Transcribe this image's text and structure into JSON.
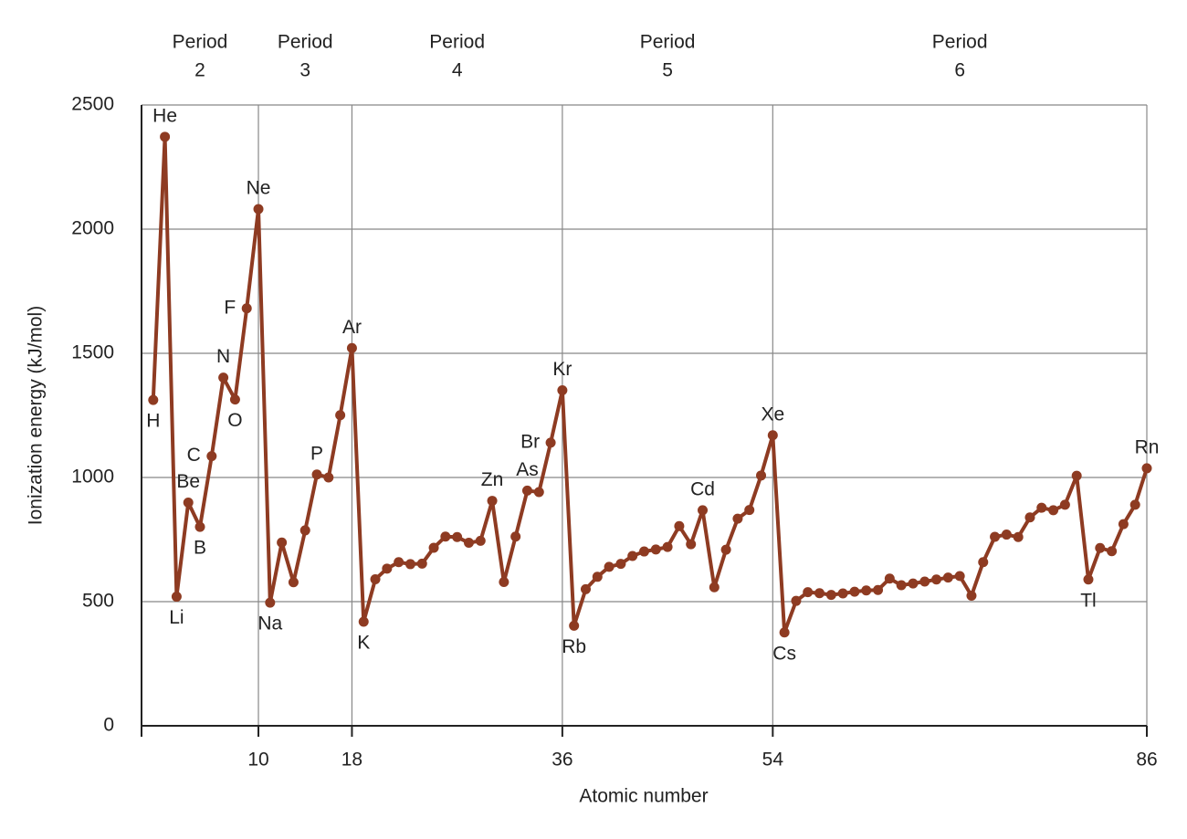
{
  "chart_data": {
    "type": "line",
    "x_label": "Atomic number",
    "y_label": "Ionization energy (kJ/mol)",
    "period_labels": [
      [
        "Period",
        "2"
      ],
      [
        "Period",
        "3"
      ],
      [
        "Period",
        "4"
      ],
      [
        "Period",
        "5"
      ],
      [
        "Period",
        "6"
      ]
    ],
    "xlim": [
      0,
      86
    ],
    "xticks": [
      10,
      18,
      36,
      54,
      86
    ],
    "ylim": [
      0,
      2500
    ],
    "yticks": [
      0,
      500,
      1000,
      1500,
      2000,
      2500
    ],
    "grid": true,
    "x": [
      1,
      2,
      3,
      4,
      5,
      6,
      7,
      8,
      9,
      10,
      11,
      12,
      13,
      14,
      15,
      16,
      17,
      18,
      19,
      20,
      21,
      22,
      23,
      24,
      25,
      26,
      27,
      28,
      29,
      30,
      31,
      32,
      33,
      34,
      35,
      36,
      37,
      38,
      39,
      40,
      41,
      42,
      43,
      44,
      45,
      46,
      47,
      48,
      49,
      50,
      51,
      52,
      53,
      54,
      55,
      56,
      57,
      58,
      59,
      60,
      61,
      62,
      63,
      64,
      65,
      66,
      67,
      68,
      69,
      70,
      71,
      72,
      73,
      74,
      75,
      76,
      77,
      78,
      79,
      80,
      81,
      82,
      83,
      84,
      85,
      86
    ],
    "series": [
      {
        "name": "Ionization energy",
        "color": "#8e3b22",
        "values": [
          1312,
          2372,
          520,
          899,
          801,
          1086,
          1402,
          1314,
          1681,
          2081,
          496,
          738,
          578,
          787,
          1012,
          1000,
          1251,
          1521,
          419,
          590,
          633,
          659,
          651,
          653,
          717,
          762,
          760,
          737,
          745,
          906,
          579,
          762,
          947,
          941,
          1140,
          1351,
          403,
          550,
          600,
          640,
          652,
          684,
          702,
          710,
          720,
          804,
          731,
          868,
          558,
          709,
          834,
          869,
          1008,
          1170,
          376,
          503,
          538,
          534,
          527,
          533,
          540,
          545,
          547,
          593,
          566,
          573,
          581,
          589,
          597,
          603,
          524,
          659,
          761,
          770,
          760,
          839,
          878,
          868,
          890,
          1007,
          589,
          716,
          703,
          812,
          890,
          1037
        ],
        "point_labels": [
          "H",
          "He",
          "Li",
          "Be",
          "B",
          "C",
          "N",
          "O",
          "F",
          "Ne",
          "Na",
          null,
          null,
          null,
          "P",
          null,
          null,
          "Ar",
          "K",
          null,
          null,
          null,
          null,
          null,
          null,
          null,
          null,
          null,
          null,
          "Zn",
          null,
          null,
          "As",
          null,
          "Br",
          "Kr",
          "Rb",
          null,
          null,
          null,
          null,
          null,
          null,
          null,
          null,
          null,
          null,
          "Cd",
          null,
          null,
          null,
          null,
          null,
          "Xe",
          "Cs",
          null,
          null,
          null,
          null,
          null,
          null,
          null,
          null,
          null,
          null,
          null,
          null,
          null,
          null,
          null,
          null,
          null,
          null,
          null,
          null,
          null,
          null,
          null,
          null,
          null,
          "Tl",
          null,
          null,
          null,
          null,
          "Rn"
        ]
      }
    ]
  }
}
